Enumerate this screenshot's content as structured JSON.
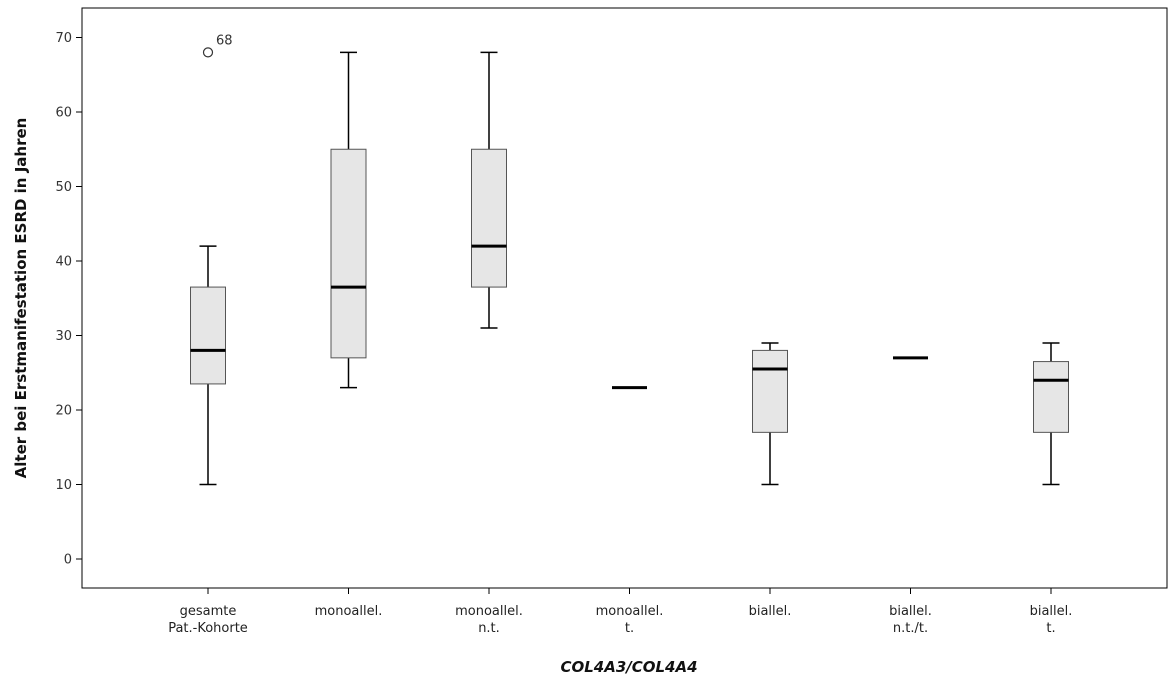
{
  "chart_data": {
    "type": "boxplot",
    "xlabel": "COL4A3/COL4A4",
    "ylabel": "Alter bei Erstmanifestation ESRD in Jahren",
    "ylim": [
      -4,
      74
    ],
    "yticks": [
      0,
      10,
      20,
      30,
      40,
      50,
      60,
      70
    ],
    "grid": false,
    "box_color": "#e6e6e6",
    "line_color": "#000000",
    "categories": [
      [
        "gesamte",
        "Pat.-Kohorte"
      ],
      [
        "monoallel."
      ],
      [
        "monoallel.",
        "n.t."
      ],
      [
        "monoallel.",
        "t."
      ],
      [
        "biallel."
      ],
      [
        "biallel.",
        "n.t./t."
      ],
      [
        "biallel.",
        "t."
      ]
    ],
    "boxes": [
      {
        "min": 10,
        "q1": 23.5,
        "median": 28,
        "q3": 36.5,
        "max": 42,
        "outliers": [
          {
            "value": 68,
            "label": "68"
          }
        ]
      },
      {
        "min": 23,
        "q1": 27,
        "median": 36.5,
        "q3": 55,
        "max": 68,
        "outliers": []
      },
      {
        "min": 31,
        "q1": 36.5,
        "median": 42,
        "q3": 55,
        "max": 68,
        "outliers": []
      },
      {
        "min": 23,
        "q1": 23,
        "median": 23,
        "q3": 23,
        "max": 23,
        "outliers": []
      },
      {
        "min": 10,
        "q1": 17,
        "median": 25.5,
        "q3": 28,
        "max": 29,
        "outliers": []
      },
      {
        "min": 27,
        "q1": 27,
        "median": 27,
        "q3": 27,
        "max": 27,
        "outliers": []
      },
      {
        "min": 10,
        "q1": 17,
        "median": 24,
        "q3": 26.5,
        "max": 29,
        "outliers": []
      }
    ]
  }
}
